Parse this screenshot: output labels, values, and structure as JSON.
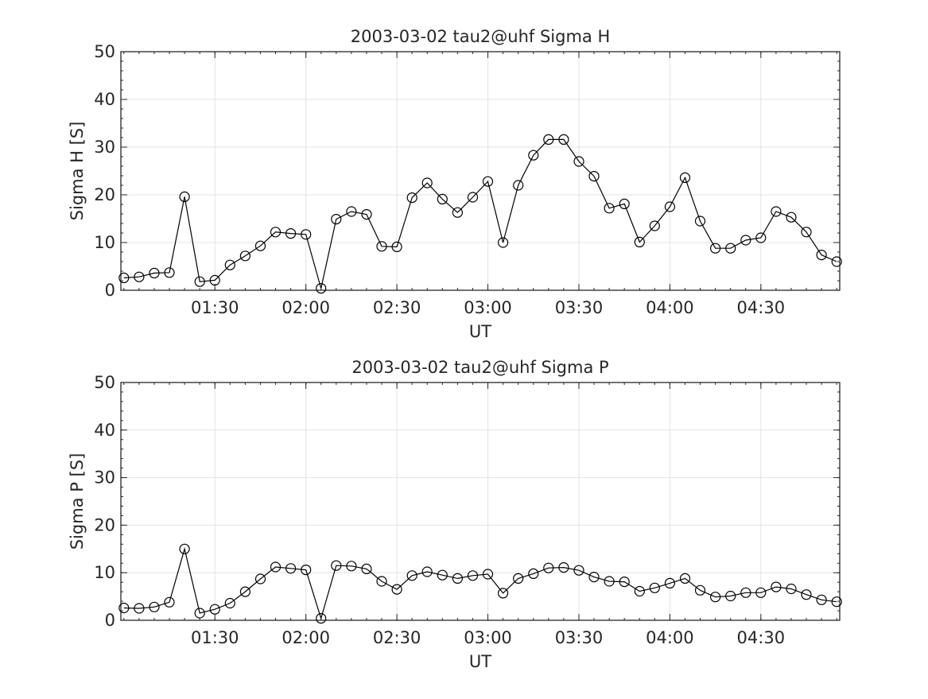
{
  "chart_data": [
    {
      "type": "line",
      "title": "2003-03-02  tau2@uhf Sigma H",
      "xlabel": "UT",
      "ylabel": "Sigma H [S]",
      "ylim": [
        0,
        50
      ],
      "yticks": [
        0,
        10,
        20,
        30,
        40,
        50
      ],
      "xlim": [
        "00:59",
        "04:56"
      ],
      "xticks": [
        "01:30",
        "02:00",
        "02:30",
        "03:00",
        "03:30",
        "04:00",
        "04:30"
      ],
      "grid": true,
      "marker": "circle",
      "x": [
        "01:00",
        "01:05",
        "01:10",
        "01:15",
        "01:20",
        "01:25",
        "01:30",
        "01:35",
        "01:40",
        "01:45",
        "01:50",
        "01:55",
        "02:00",
        "02:05",
        "02:10",
        "02:15",
        "02:20",
        "02:25",
        "02:30",
        "02:35",
        "02:40",
        "02:45",
        "02:50",
        "02:55",
        "03:00",
        "03:05",
        "03:10",
        "03:15",
        "03:20",
        "03:25",
        "03:30",
        "03:35",
        "03:40",
        "03:45",
        "03:50",
        "03:55",
        "04:00",
        "04:05",
        "04:10",
        "04:15",
        "04:20",
        "04:25",
        "04:30",
        "04:35",
        "04:40",
        "04:45",
        "04:50",
        "04:55"
      ],
      "values": [
        2.6,
        2.8,
        3.6,
        3.7,
        19.6,
        1.8,
        2.1,
        5.3,
        7.2,
        9.3,
        12.2,
        11.9,
        11.7,
        0.4,
        14.9,
        16.5,
        15.9,
        9.2,
        9.1,
        19.4,
        22.5,
        19.1,
        16.3,
        19.5,
        22.8,
        10.0,
        22.0,
        28.3,
        31.6,
        31.6,
        27.0,
        23.9,
        17.2,
        18.1,
        10.1,
        13.5,
        17.5,
        23.6,
        14.5,
        8.8,
        8.8,
        10.5,
        11.0,
        16.5,
        15.3,
        12.2,
        7.4,
        6.0
      ]
    },
    {
      "type": "line",
      "title": "2003-03-02  tau2@uhf Sigma P",
      "xlabel": "UT",
      "ylabel": "Sigma P [S]",
      "ylim": [
        0,
        50
      ],
      "yticks": [
        0,
        10,
        20,
        30,
        40,
        50
      ],
      "xlim": [
        "00:59",
        "04:56"
      ],
      "xticks": [
        "01:30",
        "02:00",
        "02:30",
        "03:00",
        "03:30",
        "04:00",
        "04:30"
      ],
      "grid": true,
      "marker": "circle",
      "x": [
        "01:00",
        "01:05",
        "01:10",
        "01:15",
        "01:20",
        "01:25",
        "01:30",
        "01:35",
        "01:40",
        "01:45",
        "01:50",
        "01:55",
        "02:00",
        "02:05",
        "02:10",
        "02:15",
        "02:20",
        "02:25",
        "02:30",
        "02:35",
        "02:40",
        "02:45",
        "02:50",
        "02:55",
        "03:00",
        "03:05",
        "03:10",
        "03:15",
        "03:20",
        "03:25",
        "03:30",
        "03:35",
        "03:40",
        "03:45",
        "03:50",
        "03:55",
        "04:00",
        "04:05",
        "04:10",
        "04:15",
        "04:20",
        "04:25",
        "04:30",
        "04:35",
        "04:40",
        "04:45",
        "04:50",
        "04:55"
      ],
      "values": [
        2.6,
        2.5,
        2.8,
        3.8,
        15.0,
        1.5,
        2.3,
        3.6,
        6.0,
        8.7,
        11.2,
        10.9,
        10.6,
        0.4,
        11.5,
        11.4,
        10.8,
        8.2,
        6.5,
        9.4,
        10.2,
        9.5,
        8.8,
        9.4,
        9.7,
        5.7,
        8.8,
        9.8,
        11.0,
        11.1,
        10.5,
        9.1,
        8.2,
        8.1,
        6.1,
        6.8,
        7.8,
        8.8,
        6.3,
        4.9,
        5.1,
        5.8,
        5.8,
        7.0,
        6.6,
        5.4,
        4.3,
        3.9
      ]
    }
  ]
}
